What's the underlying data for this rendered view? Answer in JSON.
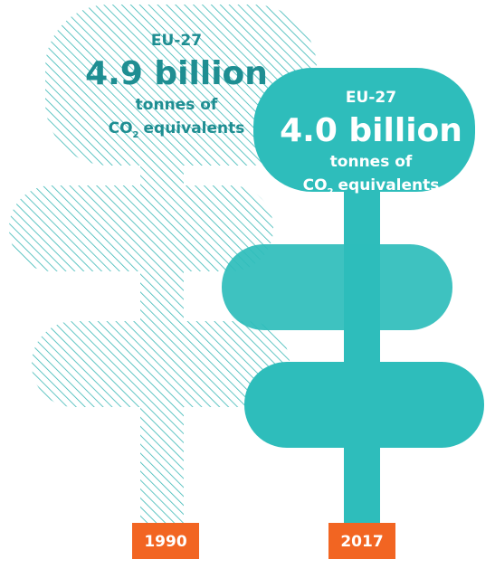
{
  "items": [
    {
      "region": "EU-27",
      "value": "4.9 billion",
      "unit_line1": "tonnes of",
      "unit_co": "CO",
      "unit_sub": "2",
      "unit_rest": "equivalents",
      "year": "1990"
    },
    {
      "region": "EU-27",
      "value": "4.0 billion",
      "unit_line1": "tonnes of",
      "unit_co": "CO",
      "unit_sub": "2",
      "unit_rest": "equivalents",
      "year": "2017"
    }
  ]
}
